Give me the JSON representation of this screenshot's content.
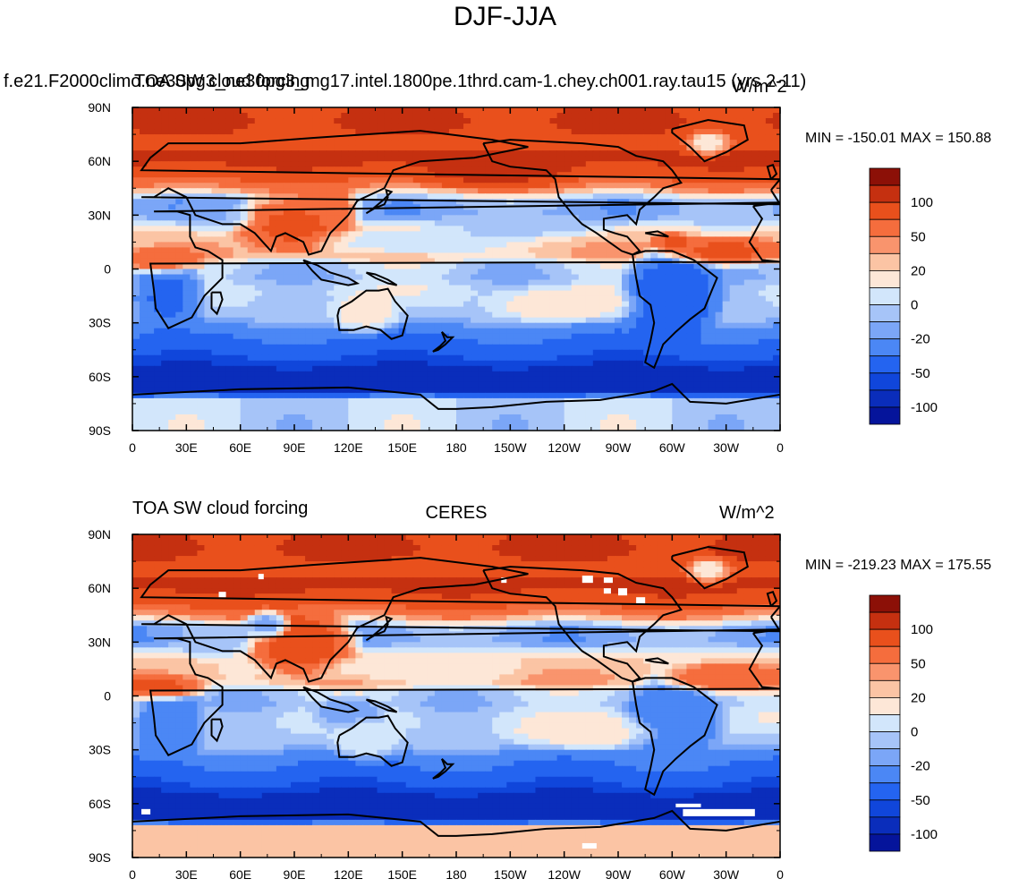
{
  "figure": {
    "title": "DJF-JJA"
  },
  "chart_data": [
    {
      "type": "heatmap",
      "left_title": "f.e21.F2000climo.ne30pg3_ne30pg3_mg17.intel.1800pe.1thrd.cam-1.chey.ch001.ray.tau15 (yrs 2-11)",
      "center_title": "TOA SW cloud forcing",
      "units": "W/m^2",
      "min_label": "MIN = -150.01",
      "max_label": "MAX = 150.88",
      "x_ticks": [
        "0",
        "30E",
        "60E",
        "90E",
        "120E",
        "150E",
        "180",
        "150W",
        "120W",
        "90W",
        "60W",
        "30W",
        "0"
      ],
      "y_ticks": [
        "90N",
        "60N",
        "30N",
        "0",
        "30S",
        "60S",
        "90S"
      ],
      "x_range": [
        0,
        360
      ],
      "y_range": [
        -90,
        90
      ],
      "levels": [
        -150,
        -100,
        -80,
        -50,
        -30,
        -20,
        -10,
        0,
        10,
        20,
        30,
        50,
        80,
        100,
        150
      ],
      "colorbar_labels": [
        "100",
        "50",
        "20",
        "0",
        "-20",
        "-50",
        "-100"
      ],
      "colors": [
        "#05149b",
        "#0a2dbb",
        "#1046db",
        "#2464f0",
        "#4b87f5",
        "#7ba6f7",
        "#a6c4f8",
        "#d2e6fb",
        "#fde7d7",
        "#fbc4a4",
        "#f9946d",
        "#f56d3d",
        "#e9501c",
        "#c53010",
        "#8c1007"
      ],
      "regions": [
        {
          "lon": 20,
          "lat": -15,
          "w": 24,
          "h": 24,
          "v": -60
        },
        {
          "lon": 300,
          "lat": -15,
          "w": 32,
          "h": 30,
          "v": -80
        },
        {
          "lon": 300,
          "lat": 15,
          "w": 14,
          "h": 6,
          "v": 60
        },
        {
          "lon": 15,
          "lat": 5,
          "w": 30,
          "h": 8,
          "v": 50
        },
        {
          "lon": 330,
          "lat": 10,
          "w": 40,
          "h": 10,
          "v": 60
        },
        {
          "lon": 90,
          "lat": 25,
          "w": 40,
          "h": 20,
          "v": 60
        },
        {
          "lon": 110,
          "lat": 35,
          "w": 18,
          "h": 16,
          "v": 50
        },
        {
          "lon": 160,
          "lat": 15,
          "w": 70,
          "h": 10,
          "v": -10
        },
        {
          "lon": 220,
          "lat": 25,
          "w": 60,
          "h": 10,
          "v": -20
        },
        {
          "lon": 45,
          "lat": 30,
          "w": 25,
          "h": 12,
          "v": -20
        },
        {
          "lon": 330,
          "lat": 30,
          "w": 30,
          "h": 12,
          "v": -15
        },
        {
          "lon": 320,
          "lat": 70,
          "w": 18,
          "h": 10,
          "v": 0
        },
        {
          "lon": 200,
          "lat": 55,
          "w": 60,
          "h": 12,
          "v": 90
        },
        {
          "lon": 130,
          "lat": -25,
          "w": 24,
          "h": 14,
          "v": 10
        },
        {
          "lon": 240,
          "lat": -20,
          "w": 50,
          "h": 12,
          "v": 10
        }
      ]
    },
    {
      "type": "heatmap",
      "left_title": "TOA SW cloud forcing",
      "center_title": "CERES",
      "units": "W/m^2",
      "min_label": "MIN = -219.23",
      "max_label": "MAX = 175.55",
      "x_ticks": [
        "0",
        "30E",
        "60E",
        "90E",
        "120E",
        "150E",
        "180",
        "150W",
        "120W",
        "90W",
        "60W",
        "30W",
        "0"
      ],
      "y_ticks": [
        "90N",
        "60N",
        "30N",
        "0",
        "30S",
        "60S",
        "90S"
      ],
      "x_range": [
        0,
        360
      ],
      "y_range": [
        -90,
        90
      ],
      "levels": [
        -150,
        -100,
        -80,
        -50,
        -30,
        -20,
        -10,
        0,
        10,
        20,
        30,
        50,
        80,
        100,
        150
      ],
      "colorbar_labels": [
        "100",
        "50",
        "20",
        "0",
        "-20",
        "-50",
        "-100"
      ],
      "colors": [
        "#05149b",
        "#0a2dbb",
        "#1046db",
        "#2464f0",
        "#4b87f5",
        "#7ba6f7",
        "#a6c4f8",
        "#d2e6fb",
        "#fde7d7",
        "#fbc4a4",
        "#f9946d",
        "#f56d3d",
        "#e9501c",
        "#c53010",
        "#8c1007"
      ],
      "regions": [
        {
          "lon": 20,
          "lat": -15,
          "w": 24,
          "h": 24,
          "v": -50
        },
        {
          "lon": 300,
          "lat": -15,
          "w": 32,
          "h": 30,
          "v": -50
        },
        {
          "lon": 15,
          "lat": 5,
          "w": 30,
          "h": 8,
          "v": 60
        },
        {
          "lon": 330,
          "lat": 10,
          "w": 40,
          "h": 10,
          "v": 50
        },
        {
          "lon": 95,
          "lat": 30,
          "w": 35,
          "h": 20,
          "v": 80
        },
        {
          "lon": 75,
          "lat": 40,
          "w": 15,
          "h": 10,
          "v": -30
        },
        {
          "lon": 160,
          "lat": 15,
          "w": 70,
          "h": 10,
          "v": 0
        },
        {
          "lon": 120,
          "lat": -10,
          "w": 25,
          "h": 12,
          "v": -30
        },
        {
          "lon": 45,
          "lat": 30,
          "w": 25,
          "h": 12,
          "v": -15
        },
        {
          "lon": 320,
          "lat": 70,
          "w": 18,
          "h": 10,
          "v": 0
        },
        {
          "lon": 130,
          "lat": -25,
          "w": 24,
          "h": 14,
          "v": 0
        },
        {
          "lon": 250,
          "lat": -20,
          "w": 50,
          "h": 12,
          "v": 10
        }
      ]
    }
  ]
}
